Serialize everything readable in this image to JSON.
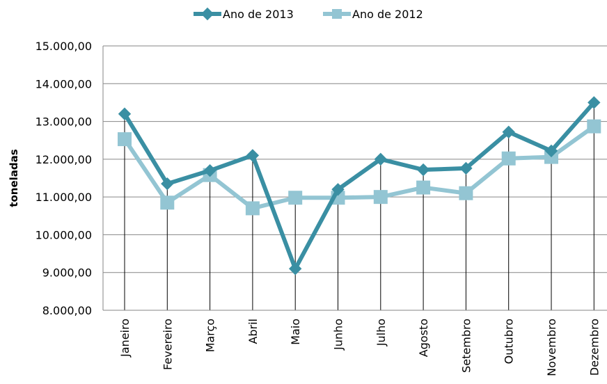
{
  "chart_data": {
    "type": "line",
    "ylabel": "toneladas",
    "xlabel": "",
    "title": "",
    "categories": [
      "Janeiro",
      "Fevereiro",
      "Março",
      "Abril",
      "Maio",
      "Junho",
      "Julho",
      "Agosto",
      "Setembro",
      "Outubro",
      "Novembro",
      "Dezembro"
    ],
    "ylim": [
      8000,
      15000
    ],
    "yticks": [
      8000,
      9000,
      10000,
      11000,
      12000,
      13000,
      14000,
      15000
    ],
    "ytick_labels": [
      "8.000,00",
      "9.000,00",
      "10.000,00",
      "11.000,00",
      "12.000,00",
      "13.000,00",
      "14.000,00",
      "15.000,00"
    ],
    "grid": "horizontal",
    "legend_position": "top",
    "series": [
      {
        "name": "Ano de 2013",
        "marker": "diamond",
        "color": "#3A8FA3",
        "values": [
          13200,
          11350,
          11700,
          12100,
          9100,
          11200,
          12000,
          11720,
          11760,
          12720,
          12220,
          13500
        ]
      },
      {
        "name": "Ano de 2012",
        "marker": "square",
        "color": "#93C5D3",
        "values": [
          12530,
          10850,
          11580,
          10700,
          10980,
          10980,
          11000,
          11250,
          11100,
          12020,
          12060,
          12870
        ]
      }
    ]
  }
}
